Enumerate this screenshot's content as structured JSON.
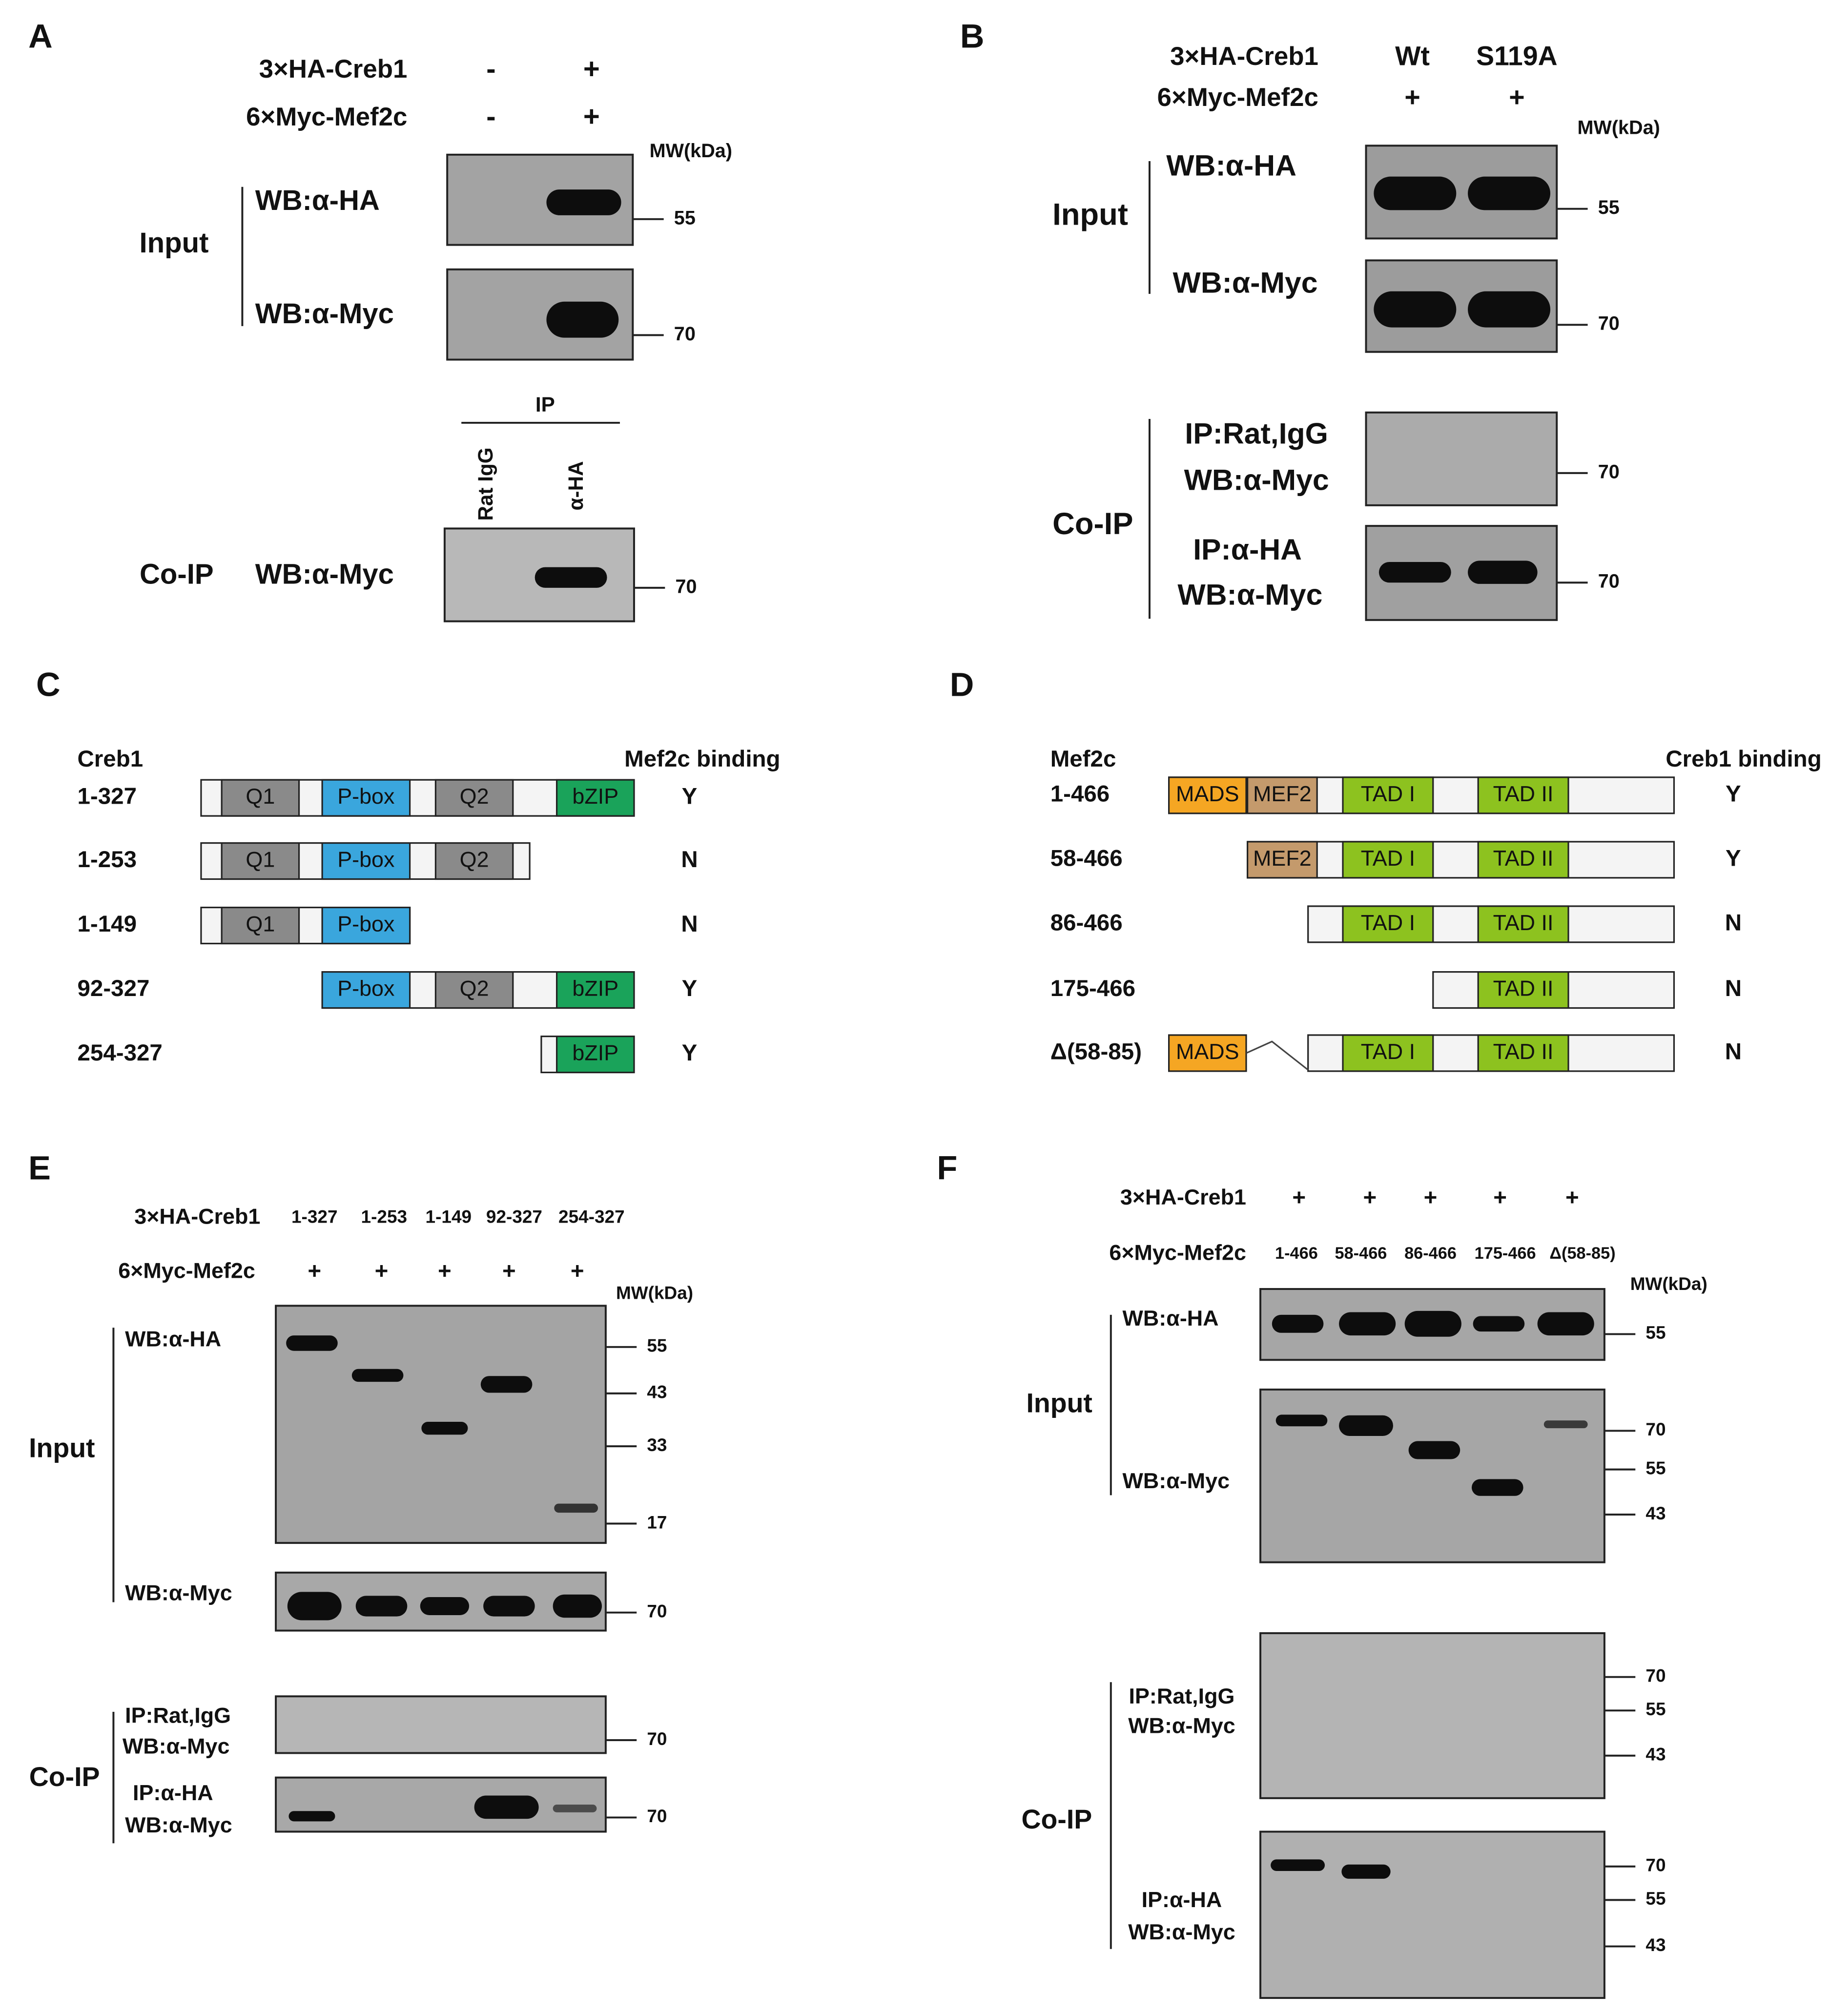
{
  "A": {
    "label": "A",
    "rows": [
      {
        "name": "3×HA-Creb1",
        "lanes": [
          "-",
          "+"
        ]
      },
      {
        "name": "6×Myc-Mef2c",
        "lanes": [
          "-",
          "+"
        ]
      }
    ],
    "mw": "MW(kDa)",
    "input": "Input",
    "wb": [
      "WB:α-HA",
      "WB:α-Myc"
    ],
    "markers": [
      "55",
      "70"
    ],
    "ip": "IP",
    "ip_lanes": [
      "Rat IgG",
      "α-HA"
    ],
    "coip": "Co-IP",
    "coip_wb": "WB:α-Myc",
    "coip_marker": "70"
  },
  "B": {
    "label": "B",
    "rows": [
      {
        "name": "3×HA-Creb1",
        "lanes": [
          "Wt",
          "S119A"
        ]
      },
      {
        "name": "6×Myc-Mef2c",
        "lanes": [
          "+",
          "+"
        ]
      }
    ],
    "mw": "MW(kDa)",
    "input": "Input",
    "wb": [
      "WB:α-HA",
      "WB:α-Myc"
    ],
    "markers": [
      "55",
      "70"
    ],
    "coip": "Co-IP",
    "coip_blots": [
      [
        "IP:Rat,IgG",
        "WB:α-Myc"
      ],
      [
        "IP:α-HA",
        "WB:α-Myc"
      ]
    ],
    "coip_markers": [
      "70",
      "70"
    ]
  },
  "C": {
    "label": "C",
    "protein": "Creb1",
    "binding_title": "Mef2c binding",
    "constructs": [
      {
        "range": "1-327",
        "domains": [
          "Q1",
          "P-box",
          "Q2",
          "bZIP"
        ],
        "binding": "Y"
      },
      {
        "range": "1-253",
        "domains": [
          "Q1",
          "P-box",
          "Q2"
        ],
        "binding": "N"
      },
      {
        "range": "1-149",
        "domains": [
          "Q1",
          "P-box"
        ],
        "binding": "N"
      },
      {
        "range": "92-327",
        "domains": [
          "P-box",
          "Q2",
          "bZIP"
        ],
        "binding": "Y"
      },
      {
        "range": "254-327",
        "domains": [
          "bZIP"
        ],
        "binding": "Y"
      }
    ]
  },
  "D": {
    "label": "D",
    "protein": "Mef2c",
    "binding_title": "Creb1 binding",
    "constructs": [
      {
        "range": "1-466",
        "domains": [
          "MADS",
          "MEF2",
          "TAD I",
          "TAD II"
        ],
        "binding": "Y"
      },
      {
        "range": "58-466",
        "domains": [
          "MEF2",
          "TAD I",
          "TAD II"
        ],
        "binding": "Y"
      },
      {
        "range": "86-466",
        "domains": [
          "TAD I",
          "TAD II"
        ],
        "binding": "N"
      },
      {
        "range": "175-466",
        "domains": [
          "TAD II"
        ],
        "binding": "N"
      },
      {
        "range": "Δ(58-85)",
        "domains": [
          "MADS",
          "TAD I",
          "TAD II"
        ],
        "binding": "N"
      }
    ]
  },
  "E": {
    "label": "E",
    "rows": [
      {
        "name": "3×HA-Creb1",
        "lanes": [
          "1-327",
          "1-253",
          "1-149",
          "92-327",
          "254-327"
        ]
      },
      {
        "name": "6×Myc-Mef2c",
        "lanes": [
          "+",
          "+",
          "+",
          "+",
          "+"
        ]
      }
    ],
    "mw": "MW(kDa)",
    "input": "Input",
    "wb": [
      "WB:α-HA",
      "WB:α-Myc"
    ],
    "ha_markers": [
      "55",
      "43",
      "33",
      "17"
    ],
    "myc_marker": "70",
    "coip": "Co-IP",
    "coip_blots": [
      [
        "IP:Rat,IgG",
        "WB:α-Myc"
      ],
      [
        "IP:α-HA",
        "WB:α-Myc"
      ]
    ],
    "coip_markers": [
      "70",
      "70"
    ]
  },
  "F": {
    "label": "F",
    "rows": [
      {
        "name": "3×HA-Creb1",
        "lanes": [
          "+",
          "+",
          "+",
          "+",
          "+"
        ]
      },
      {
        "name": "6×Myc-Mef2c",
        "lanes": [
          "1-466",
          "58-466",
          "86-466",
          "175-466",
          "Δ(58-85)"
        ]
      }
    ],
    "mw": "MW(kDa)",
    "input": "Input",
    "wb": [
      "WB:α-HA",
      "WB:α-Myc"
    ],
    "ha_marker": "55",
    "myc_markers": [
      "70",
      "55",
      "43"
    ],
    "coip": "Co-IP",
    "coip_blots": [
      [
        "IP:Rat,IgG",
        "WB:α-Myc"
      ],
      [
        "IP:α-HA",
        "WB:α-Myc"
      ]
    ],
    "coip_markers": [
      [
        "70",
        "55",
        "43"
      ],
      [
        "70",
        "55",
        "43"
      ]
    ]
  }
}
